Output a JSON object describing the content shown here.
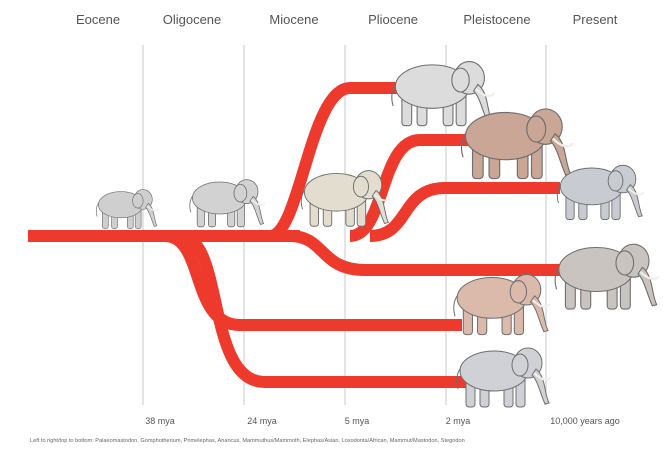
{
  "epochs": [
    "Eocene",
    "Oligocene",
    "Miocene",
    "Pliocene",
    "Pleistocene",
    "Present"
  ],
  "time_labels": [
    "38 mya",
    "24 mya",
    "5 mya",
    "2 mya",
    "10,000 years ago"
  ],
  "caption": "Left to right/top to bottom: Palaeomastodon, Gomphotherium, Primelephas, Anancus, Mammuthus/Mammoth, Elephas/Asian, Loxodonta/African, Mammut/Mastodon, Stegodon"
}
